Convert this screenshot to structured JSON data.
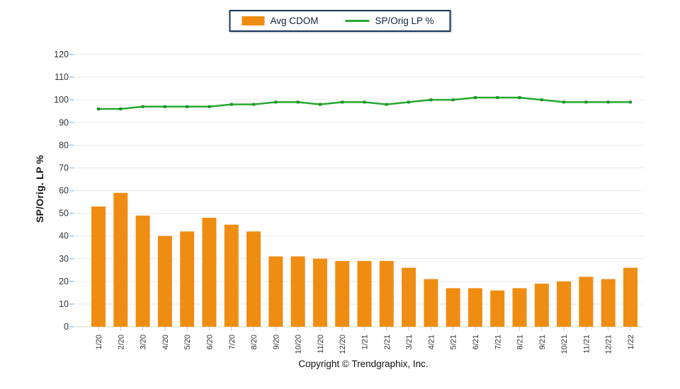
{
  "legend": {
    "items": [
      {
        "label": "Avg CDOM",
        "type": "bar",
        "color": "#ef8d12"
      },
      {
        "label": "SP/Orig LP %",
        "type": "line",
        "color": "#26a832"
      }
    ]
  },
  "y_axis_title": "SP/Orig. LP %",
  "footer": {
    "copyright": "Copyright © Trendgraphix, Inc."
  },
  "chart_data": {
    "type": "bar",
    "title": "",
    "categories": [
      "1/20",
      "2/20",
      "3/20",
      "4/20",
      "5/20",
      "6/20",
      "7/20",
      "8/20",
      "9/20",
      "10/20",
      "11/20",
      "12/20",
      "1/21",
      "2/21",
      "3/21",
      "4/21",
      "5/21",
      "6/21",
      "7/21",
      "8/21",
      "9/21",
      "10/21",
      "11/21",
      "12/21",
      "1/22"
    ],
    "series": [
      {
        "name": "Avg CDOM",
        "type": "bar",
        "color": "#ef8d12",
        "values": [
          53,
          59,
          49,
          40,
          42,
          48,
          45,
          42,
          31,
          31,
          30,
          29,
          29,
          29,
          26,
          21,
          17,
          17,
          16,
          17,
          19,
          20,
          22,
          21,
          26
        ]
      },
      {
        "name": "SP/Orig LP %",
        "type": "line",
        "color": "#26a832",
        "marker_color": "#1e9429",
        "values": [
          96,
          96,
          97,
          97,
          97,
          97,
          98,
          98,
          99,
          99,
          98,
          99,
          99,
          98,
          99,
          100,
          100,
          101,
          101,
          101,
          100,
          99,
          99,
          99,
          99
        ]
      }
    ],
    "xlabel": "",
    "ylabel": "SP/Orig. LP %",
    "ylim": [
      0,
      120
    ],
    "ytick_step": 10,
    "grid": true,
    "legend_position": "top-center"
  },
  "style_colors": {
    "gridline": "#e9e9e9",
    "baseline": "#d7d7d7",
    "x_tick": "#c9c9c9",
    "y_tick": "#aed5f2",
    "tick_label": "#333333",
    "legend_border": "#17375e"
  }
}
